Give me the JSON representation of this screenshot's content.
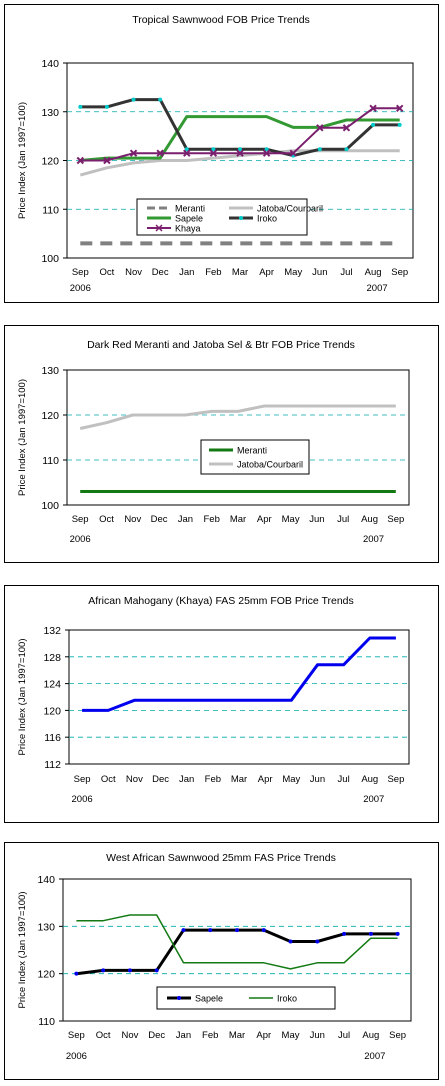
{
  "months": [
    "Sep",
    "Oct",
    "Nov",
    "Dec",
    "Jan",
    "Feb",
    "Mar",
    "Apr",
    "May",
    "Jun",
    "Jul",
    "Aug",
    "Sep"
  ],
  "year_start": "2006",
  "year_end": "2007",
  "colors": {
    "meranti_dashed": "#808080",
    "jatoba": "#c0c0c0",
    "sapele": "#339933",
    "iroko": "#333333",
    "khaya": "#7a1f6e",
    "iroko_marker": "#00cccc",
    "meranti_solid": "#137a13",
    "khaya_blue": "#0000ee",
    "sapele_black": "#000000",
    "iroko_green": "#137a13",
    "gridline": "#00aaaa"
  },
  "chart_data": [
    {
      "type": "line",
      "title": "Tropical Sawnwood FOB Price Trends",
      "ylabel": "Price Index (Jan 1997=100)",
      "ylim": [
        100,
        140
      ],
      "yticks": [
        100,
        110,
        120,
        130,
        140
      ],
      "x": [
        "Sep",
        "Oct",
        "Nov",
        "Dec",
        "Jan",
        "Feb",
        "Mar",
        "Apr",
        "May",
        "Jun",
        "Jul",
        "Aug",
        "Sep"
      ],
      "series": [
        {
          "name": "Meranti",
          "values": [
            103,
            103,
            103,
            103,
            103,
            103,
            103,
            103,
            103,
            103,
            103,
            103,
            103
          ]
        },
        {
          "name": "Jatoba/Courbaril",
          "values": [
            117,
            118.5,
            119.5,
            120,
            120,
            120.5,
            121,
            121.5,
            122,
            122,
            122,
            122,
            122
          ]
        },
        {
          "name": "Sapele",
          "values": [
            120,
            120.5,
            120.5,
            120.5,
            129,
            129,
            129,
            129,
            126.8,
            126.8,
            128.3,
            128.3,
            128.3
          ]
        },
        {
          "name": "Iroko",
          "values": [
            131,
            131,
            132.5,
            132.5,
            122.3,
            122.3,
            122.3,
            122.3,
            121,
            122.3,
            122.3,
            127.3,
            127.3
          ]
        },
        {
          "name": "Khaya",
          "values": [
            120,
            120,
            121.5,
            121.5,
            121.5,
            121.5,
            121.5,
            121.5,
            121.5,
            126.7,
            126.7,
            130.7,
            130.7
          ]
        }
      ]
    },
    {
      "type": "line",
      "title": "Dark Red Meranti and Jatoba Sel & Btr FOB Price Trends",
      "ylabel": "Price Index (Jan 1997=100)",
      "ylim": [
        100,
        130
      ],
      "yticks": [
        100,
        110,
        120,
        130
      ],
      "x": [
        "Sep",
        "Oct",
        "Nov",
        "Dec",
        "Jan",
        "Feb",
        "Mar",
        "Apr",
        "May",
        "Jun",
        "Jul",
        "Aug",
        "Sep"
      ],
      "series": [
        {
          "name": "Meranti",
          "values": [
            103,
            103,
            103,
            103,
            103,
            103,
            103,
            103,
            103,
            103,
            103,
            103,
            103
          ]
        },
        {
          "name": "Jatoba/Courbaril",
          "values": [
            117,
            118.3,
            120,
            120,
            120,
            120.8,
            120.8,
            122,
            122,
            122,
            122,
            122,
            122
          ]
        }
      ]
    },
    {
      "type": "line",
      "title": "African Mahogany (Khaya) FAS 25mm FOB Price Trends",
      "ylabel": "Price Index (Jan 1997=100)",
      "ylim": [
        112,
        132
      ],
      "yticks": [
        112,
        116,
        120,
        124,
        128,
        132
      ],
      "x": [
        "Sep",
        "Oct",
        "Nov",
        "Dec",
        "Jan",
        "Feb",
        "Mar",
        "Apr",
        "May",
        "Jun",
        "Jul",
        "Aug",
        "Sep"
      ],
      "series": [
        {
          "name": "Khaya",
          "values": [
            120,
            120,
            121.5,
            121.5,
            121.5,
            121.5,
            121.5,
            121.5,
            121.5,
            126.8,
            126.8,
            130.8,
            130.8
          ]
        }
      ]
    },
    {
      "type": "line",
      "title": "West African Sawnwood 25mm FAS Price Trends",
      "ylabel": "Price Index (Jan 1997=100)",
      "ylim": [
        110,
        140
      ],
      "yticks": [
        110,
        120,
        130,
        140
      ],
      "x": [
        "Sep",
        "Oct",
        "Nov",
        "Dec",
        "Jan",
        "Feb",
        "Mar",
        "Apr",
        "May",
        "Jun",
        "Jul",
        "Aug",
        "Sep"
      ],
      "series": [
        {
          "name": "Sapele",
          "values": [
            120,
            120.7,
            120.7,
            120.7,
            129.2,
            129.2,
            129.2,
            129.2,
            126.8,
            126.8,
            128.4,
            128.4,
            128.4
          ]
        },
        {
          "name": "Iroko",
          "values": [
            131.2,
            131.2,
            132.4,
            132.4,
            122.3,
            122.3,
            122.3,
            122.3,
            121,
            122.3,
            122.3,
            127.5,
            127.5
          ]
        }
      ]
    }
  ]
}
